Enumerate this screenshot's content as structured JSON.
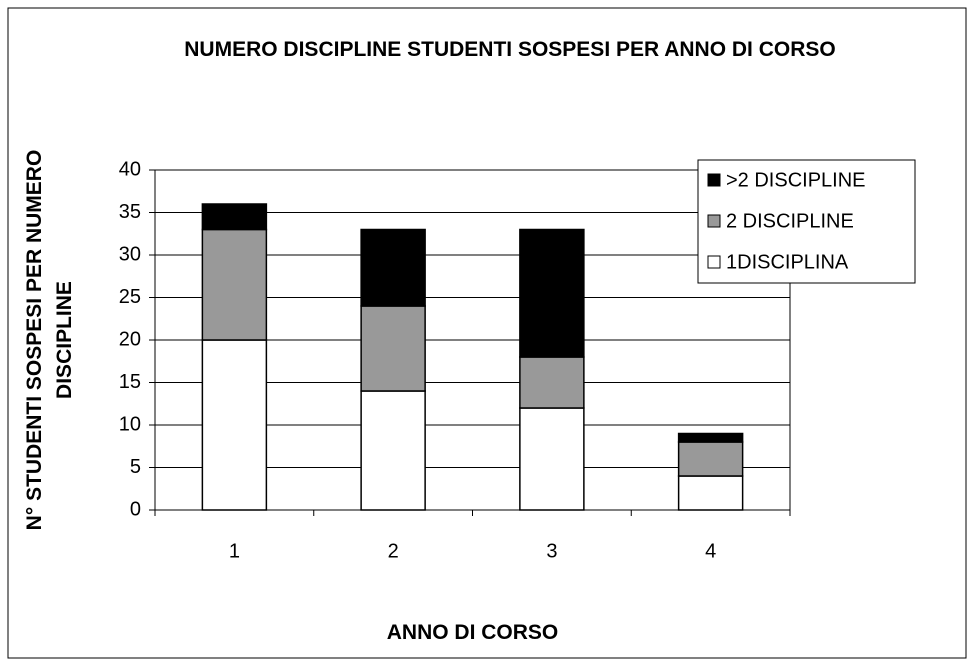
{
  "chart_data": {
    "type": "stacked_bar",
    "title": "NUMERO DISCIPLINE STUDENTI SOSPESI PER ANNO DI CORSO",
    "x_label": "ANNO DI CORSO",
    "y_label": "N° STUDENTI SOSPESI PER NUMERO DISCIPLINE",
    "categories": [
      "1",
      "2",
      "3",
      "4"
    ],
    "series": [
      {
        "name": "1DISCIPLINA",
        "color": "#ffffff",
        "values": [
          20,
          14,
          12,
          4
        ]
      },
      {
        "name": "2 DISCIPLINE",
        "color": "#999999",
        "values": [
          13,
          10,
          6,
          4
        ]
      },
      {
        "name": ">2 DISCIPLINE",
        "color": "#000000",
        "values": [
          3,
          9,
          15,
          1
        ]
      }
    ],
    "ylim": [
      0,
      40
    ],
    "yticks": [
      0,
      5,
      10,
      15,
      20,
      25,
      30,
      35,
      40
    ],
    "grid": true,
    "legend": "top-right"
  }
}
